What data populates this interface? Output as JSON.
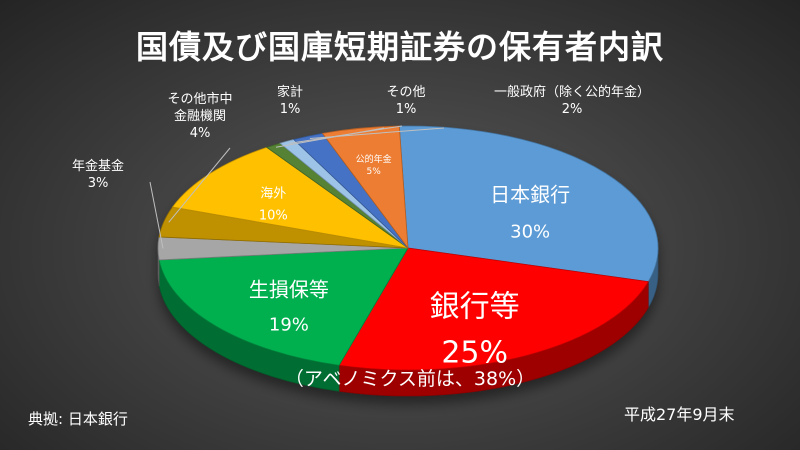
{
  "chart_data": {
    "type": "pie",
    "title": "国債及び国庫短期証券の保有者内訳",
    "source": "典拠: 日本銀行",
    "as_of": "平成27年9月末",
    "note": "（アベノミクス前は、38%）",
    "slices": [
      {
        "name": "日本銀行",
        "value": 30,
        "value_label": "30%",
        "color": "#5b9bd5"
      },
      {
        "name": "銀行等",
        "value": 25,
        "value_label": "25%",
        "color": "#ff0000"
      },
      {
        "name": "生損保等",
        "value": 19,
        "value_label": "19%",
        "color": "#00b050"
      },
      {
        "name": "年金基金",
        "value": 3,
        "value_label": "3%",
        "color": "#a6a6a6"
      },
      {
        "name": "その他市中金融機関",
        "name_lines": [
          "その他市中",
          "金融機関"
        ],
        "value": 4,
        "value_label": "4%",
        "color": "#bf9000"
      },
      {
        "name": "海外",
        "value": 10,
        "value_label": "10%",
        "color": "#ffc000"
      },
      {
        "name": "家計",
        "value": 1,
        "value_label": "1%",
        "color": "#548235"
      },
      {
        "name": "その他",
        "value": 1,
        "value_label": "1%",
        "color": "#9dc3e6"
      },
      {
        "name": "一般政府（除く公的年金）",
        "value": 2,
        "value_label": "2%",
        "color": "#4472c4"
      },
      {
        "name": "公的年金",
        "value": 5,
        "value_label": "5%",
        "color": "#ed7d31"
      }
    ]
  }
}
